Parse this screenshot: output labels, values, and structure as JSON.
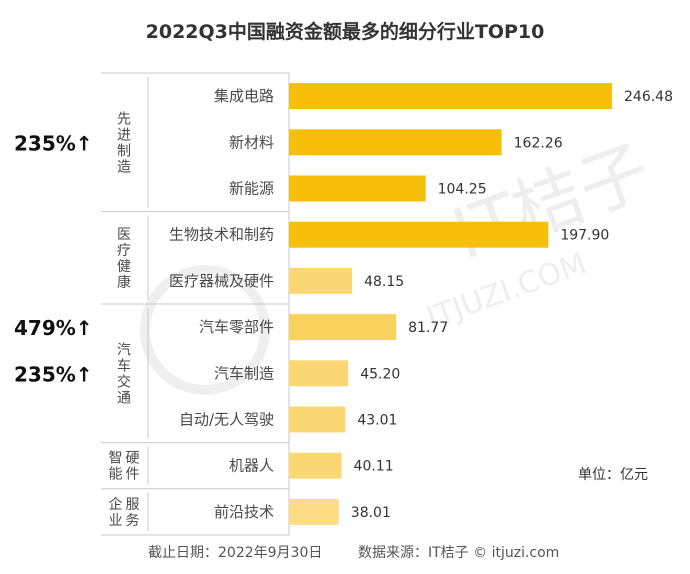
{
  "chart_data": {
    "type": "bar",
    "orientation": "horizontal",
    "title": "2022Q3中国融资金额最多的细分行业TOP10",
    "unit_label": "单位：亿元",
    "categories": [
      "集成电路",
      "新材料",
      "新能源",
      "生物技术和制药",
      "医疗器械及硬件",
      "汽车零部件",
      "汽车制造",
      "自动/无人驾驶",
      "机器人",
      "前沿技术"
    ],
    "values": [
      246.48,
      162.26,
      104.25,
      197.9,
      48.15,
      81.77,
      45.2,
      43.01,
      40.11,
      38.01
    ],
    "value_labels": [
      "246.48",
      "162.26",
      "104.25",
      "197.90",
      "48.15",
      "81.77",
      "45.20",
      "43.01",
      "40.11",
      "38.01"
    ],
    "xlim": [
      0,
      250
    ],
    "bar_colors": [
      "#f7be0b",
      "#f7be0b",
      "#f7be0b",
      "#f7be0b",
      "#fcd874",
      "#f9d25e",
      "#fcd874",
      "#fcd874",
      "#fcd874",
      "#fcdd85"
    ],
    "groups": [
      {
        "lines": [
          "先进制造"
        ],
        "count": 3
      },
      {
        "lines": [
          "医疗健康"
        ],
        "count": 2
      },
      {
        "lines": [
          "汽车交通"
        ],
        "count": 3
      },
      {
        "lines": [
          "智能",
          "硬件"
        ],
        "count": 1
      },
      {
        "lines": [
          "企业",
          "服务"
        ],
        "count": 1
      }
    ],
    "annotations": [
      {
        "text": "235%↑",
        "category_index": 1
      },
      {
        "text": "479%↑",
        "category_index": 5
      },
      {
        "text": "235%↑",
        "category_index": 6
      }
    ]
  },
  "footer": {
    "date": "截止日期：2022年9月30日",
    "source": "数据来源：IT桔子 © itjuzi.com"
  },
  "watermark": {
    "brand": "IT桔子",
    "url": "ITJUZI.COM"
  }
}
